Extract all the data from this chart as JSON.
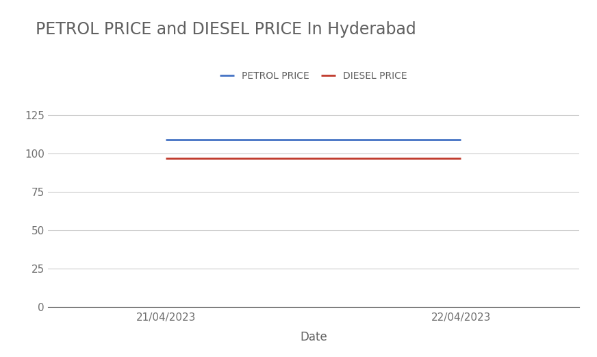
{
  "title": "PETROL PRICE and DIESEL PRICE In Hyderabad",
  "xlabel": "Date",
  "x_labels": [
    "21/04/2023",
    "22/04/2023"
  ],
  "petrol_values": [
    109.0,
    109.0
  ],
  "diesel_values": [
    97.0,
    97.0
  ],
  "petrol_color": "#4472C4",
  "diesel_color": "#C0392B",
  "legend_labels": [
    "PETROL PRICE",
    "DIESEL PRICE"
  ],
  "ylim": [
    0,
    135
  ],
  "yticks": [
    0,
    25,
    50,
    75,
    100,
    125
  ],
  "title_fontsize": 17,
  "title_color": "#606060",
  "axis_label_fontsize": 12,
  "tick_fontsize": 11,
  "legend_fontsize": 10,
  "line_width": 2.0,
  "background_color": "#ffffff",
  "grid_color": "#cccccc"
}
